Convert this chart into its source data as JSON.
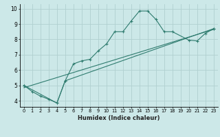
{
  "xlabel": "Humidex (Indice chaleur)",
  "ylabel": "",
  "xlim": [
    -0.5,
    23.5
  ],
  "ylim": [
    3.6,
    10.3
  ],
  "xticks": [
    0,
    1,
    2,
    3,
    4,
    5,
    6,
    7,
    8,
    9,
    10,
    11,
    12,
    13,
    14,
    15,
    16,
    17,
    18,
    19,
    20,
    21,
    22,
    23
  ],
  "yticks": [
    4,
    5,
    6,
    7,
    8,
    9,
    10
  ],
  "bg_color": "#cce8e8",
  "grid_color": "#b0d0d0",
  "line_color": "#2e7b6e",
  "line1_x": [
    0,
    1,
    2,
    3,
    4,
    5,
    6,
    7,
    8,
    9,
    10,
    11,
    12,
    13,
    14,
    15,
    16,
    17,
    18,
    20,
    21,
    22,
    23
  ],
  "line1_y": [
    5.0,
    4.6,
    4.3,
    4.1,
    3.85,
    5.3,
    6.4,
    6.6,
    6.7,
    7.25,
    7.7,
    8.5,
    8.5,
    9.2,
    9.85,
    9.85,
    9.3,
    8.5,
    8.5,
    7.95,
    7.9,
    8.4,
    8.7
  ],
  "line2_x": [
    0,
    23
  ],
  "line2_y": [
    4.85,
    8.65
  ],
  "line3_x": [
    0,
    4,
    5,
    23
  ],
  "line3_y": [
    5.0,
    3.85,
    5.3,
    8.7
  ],
  "xlabel_fontsize": 6.0,
  "tick_fontsize_x": 4.8,
  "tick_fontsize_y": 5.5
}
